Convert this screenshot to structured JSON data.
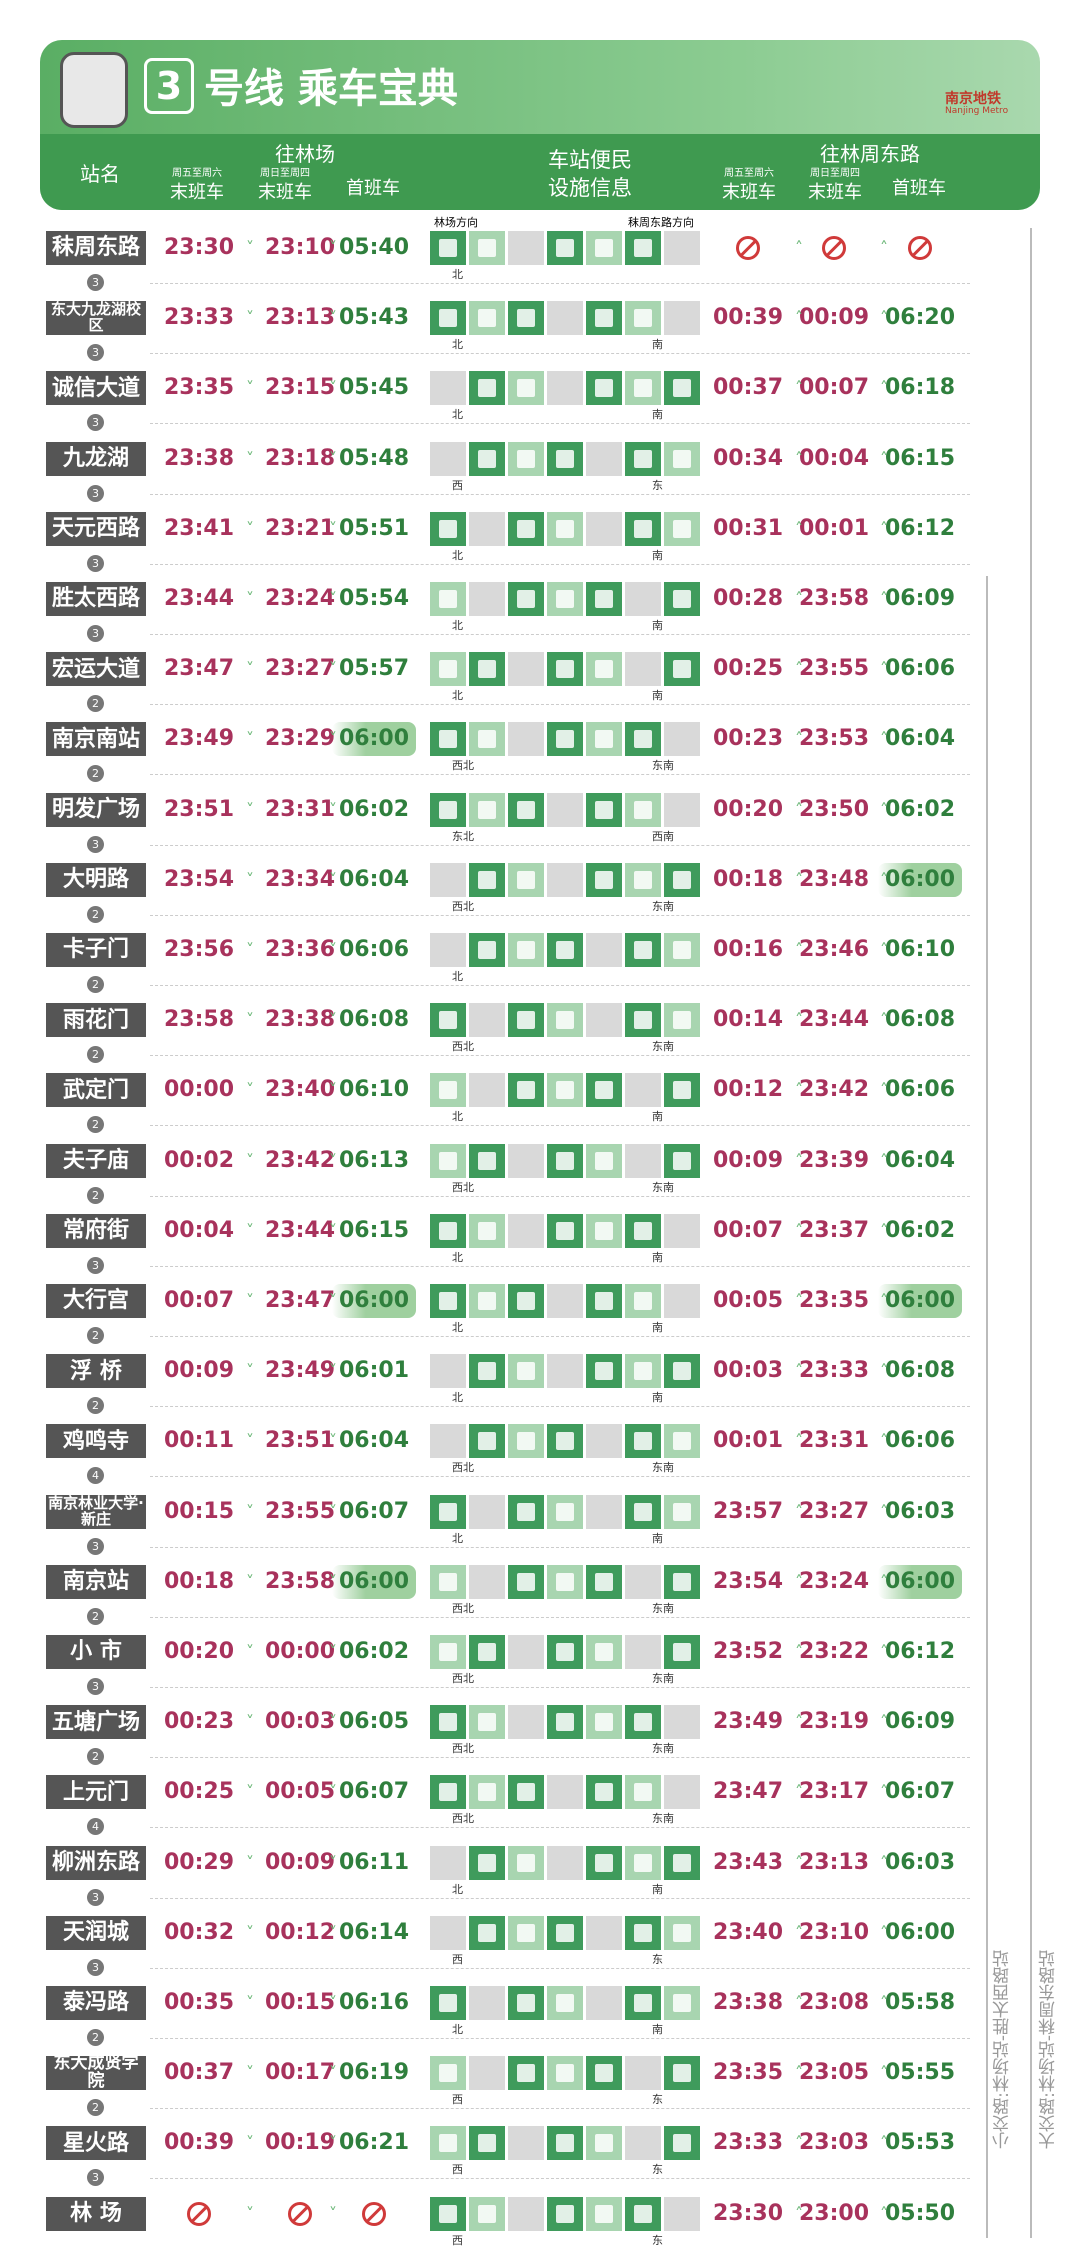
{
  "header": {
    "line_no": "3",
    "title": "号线 乘车宝典",
    "logo_cn": "南京地铁",
    "logo_en": "Nanjing Metro"
  },
  "columns": {
    "station": "站名",
    "to_a": "往林场",
    "to_b": "往林周东路",
    "fri_sat": "周五至周六",
    "sun_thu": "周日至周四",
    "last": "末班车",
    "first": "首班车",
    "facility": [
      "车站便民",
      "设施信息"
    ]
  },
  "directions": [
    "林场方向",
    "秣周东路方向"
  ],
  "routes": [
    "小交路:林场站-胜太西路站",
    "大交路:林场站-秣周东路站"
  ],
  "stations": [
    {
      "name": "秣周东路",
      "to_a": [
        "23:30",
        "23:10",
        "05:40"
      ],
      "to_b": [
        null,
        null,
        null
      ],
      "exits": [
        "北",
        null
      ],
      "minutes": "3"
    },
    {
      "name": "东大九龙湖校区",
      "to_a": [
        "23:33",
        "23:13",
        "05:43"
      ],
      "to_b": [
        "00:39",
        "00:09",
        "06:20"
      ],
      "exits": [
        "北",
        "南"
      ],
      "minutes": "3"
    },
    {
      "name": "诚信大道",
      "to_a": [
        "23:35",
        "23:15",
        "05:45"
      ],
      "to_b": [
        "00:37",
        "00:07",
        "06:18"
      ],
      "exits": [
        "北",
        "南"
      ],
      "minutes": "3"
    },
    {
      "name": "九龙湖",
      "to_a": [
        "23:38",
        "23:18",
        "05:48"
      ],
      "to_b": [
        "00:34",
        "00:04",
        "06:15"
      ],
      "exits": [
        "西",
        "东"
      ],
      "minutes": "3"
    },
    {
      "name": "天元西路",
      "to_a": [
        "23:41",
        "23:21",
        "05:51"
      ],
      "to_b": [
        "00:31",
        "00:01",
        "06:12"
      ],
      "exits": [
        "北",
        "南"
      ],
      "minutes": "3"
    },
    {
      "name": "胜太西路",
      "to_a": [
        "23:44",
        "23:24",
        "05:54"
      ],
      "to_b": [
        "00:28",
        "23:58",
        "06:09"
      ],
      "exits": [
        "北",
        "南"
      ],
      "minutes": "3"
    },
    {
      "name": "宏运大道",
      "to_a": [
        "23:47",
        "23:27",
        "05:57"
      ],
      "to_b": [
        "00:25",
        "23:55",
        "06:06"
      ],
      "exits": [
        "北",
        "南"
      ],
      "minutes": "2"
    },
    {
      "name": "南京南站",
      "to_a": [
        "23:49",
        "23:29",
        "06:00"
      ],
      "to_b": [
        "00:23",
        "23:53",
        "06:04"
      ],
      "exits": [
        "西北",
        "东南"
      ],
      "minutes": "2",
      "highlight": [
        "to_a"
      ]
    },
    {
      "name": "明发广场",
      "to_a": [
        "23:51",
        "23:31",
        "06:02"
      ],
      "to_b": [
        "00:20",
        "23:50",
        "06:02"
      ],
      "exits": [
        "东北",
        "西南"
      ],
      "minutes": "3"
    },
    {
      "name": "大明路",
      "to_a": [
        "23:54",
        "23:34",
        "06:04"
      ],
      "to_b": [
        "00:18",
        "23:48",
        "06:00"
      ],
      "exits": [
        "西北",
        "东南"
      ],
      "minutes": "2",
      "highlight": [
        "to_b"
      ]
    },
    {
      "name": "卡子门",
      "to_a": [
        "23:56",
        "23:36",
        "06:06"
      ],
      "to_b": [
        "00:16",
        "23:46",
        "06:10"
      ],
      "exits": [
        "北",
        null
      ],
      "minutes": "2"
    },
    {
      "name": "雨花门",
      "to_a": [
        "23:58",
        "23:38",
        "06:08"
      ],
      "to_b": [
        "00:14",
        "23:44",
        "06:08"
      ],
      "exits": [
        "西北",
        "东南"
      ],
      "minutes": "2"
    },
    {
      "name": "武定门",
      "to_a": [
        "00:00",
        "23:40",
        "06:10"
      ],
      "to_b": [
        "00:12",
        "23:42",
        "06:06"
      ],
      "exits": [
        "北",
        "南"
      ],
      "minutes": "2"
    },
    {
      "name": "夫子庙",
      "to_a": [
        "00:02",
        "23:42",
        "06:13"
      ],
      "to_b": [
        "00:09",
        "23:39",
        "06:04"
      ],
      "exits": [
        "西北",
        "东南"
      ],
      "minutes": "2"
    },
    {
      "name": "常府街",
      "to_a": [
        "00:04",
        "23:44",
        "06:15"
      ],
      "to_b": [
        "00:07",
        "23:37",
        "06:02"
      ],
      "exits": [
        "北",
        "南"
      ],
      "minutes": "3"
    },
    {
      "name": "大行宫",
      "to_a": [
        "00:07",
        "23:47",
        "06:00"
      ],
      "to_b": [
        "00:05",
        "23:35",
        "06:00"
      ],
      "exits": [
        "北",
        "南"
      ],
      "minutes": "2",
      "highlight": [
        "to_a",
        "to_b"
      ]
    },
    {
      "name": "浮 桥",
      "to_a": [
        "00:09",
        "23:49",
        "06:01"
      ],
      "to_b": [
        "00:03",
        "23:33",
        "06:08"
      ],
      "exits": [
        "北",
        "南"
      ],
      "minutes": "2"
    },
    {
      "name": "鸡鸣寺",
      "to_a": [
        "00:11",
        "23:51",
        "06:04"
      ],
      "to_b": [
        "00:01",
        "23:31",
        "06:06"
      ],
      "exits": [
        "西北",
        "东南"
      ],
      "minutes": "4"
    },
    {
      "name": "南京林业大学·新庄",
      "to_a": [
        "00:15",
        "23:55",
        "06:07"
      ],
      "to_b": [
        "23:57",
        "23:27",
        "06:03"
      ],
      "exits": [
        "北",
        "南"
      ],
      "minutes": "3"
    },
    {
      "name": "南京站",
      "to_a": [
        "00:18",
        "23:58",
        "06:00"
      ],
      "to_b": [
        "23:54",
        "23:24",
        "06:00"
      ],
      "exits": [
        "西北",
        "东南"
      ],
      "minutes": "2",
      "highlight": [
        "to_a",
        "to_b"
      ]
    },
    {
      "name": "小 市",
      "to_a": [
        "00:20",
        "00:00",
        "06:02"
      ],
      "to_b": [
        "23:52",
        "23:22",
        "06:12"
      ],
      "exits": [
        "西北",
        "东南"
      ],
      "minutes": "3"
    },
    {
      "name": "五塘广场",
      "to_a": [
        "00:23",
        "00:03",
        "06:05"
      ],
      "to_b": [
        "23:49",
        "23:19",
        "06:09"
      ],
      "exits": [
        "西北",
        "东南"
      ],
      "minutes": "2"
    },
    {
      "name": "上元门",
      "to_a": [
        "00:25",
        "00:05",
        "06:07"
      ],
      "to_b": [
        "23:47",
        "23:17",
        "06:07"
      ],
      "exits": [
        "西北",
        "东南"
      ],
      "minutes": "4"
    },
    {
      "name": "柳洲东路",
      "to_a": [
        "00:29",
        "00:09",
        "06:11"
      ],
      "to_b": [
        "23:43",
        "23:13",
        "06:03"
      ],
      "exits": [
        "北",
        "南"
      ],
      "minutes": "3"
    },
    {
      "name": "天润城",
      "to_a": [
        "00:32",
        "00:12",
        "06:14"
      ],
      "to_b": [
        "23:40",
        "23:10",
        "06:00"
      ],
      "exits": [
        "西",
        "东"
      ],
      "minutes": "3"
    },
    {
      "name": "泰冯路",
      "to_a": [
        "00:35",
        "00:15",
        "06:16"
      ],
      "to_b": [
        "23:38",
        "23:08",
        "05:58"
      ],
      "exits": [
        "北",
        "南"
      ],
      "minutes": "2"
    },
    {
      "name": "东大成贤学院",
      "to_a": [
        "00:37",
        "00:17",
        "06:19"
      ],
      "to_b": [
        "23:35",
        "23:05",
        "05:55"
      ],
      "exits": [
        "西",
        "东"
      ],
      "minutes": "2"
    },
    {
      "name": "星火路",
      "to_a": [
        "00:39",
        "00:19",
        "06:21"
      ],
      "to_b": [
        "23:33",
        "23:03",
        "05:53"
      ],
      "exits": [
        "西",
        "东"
      ],
      "minutes": "3"
    },
    {
      "name": "林 场",
      "to_a": [
        null,
        null,
        null
      ],
      "to_b": [
        "23:30",
        "23:00",
        "05:50"
      ],
      "exits": [
        "西",
        "东"
      ]
    }
  ]
}
